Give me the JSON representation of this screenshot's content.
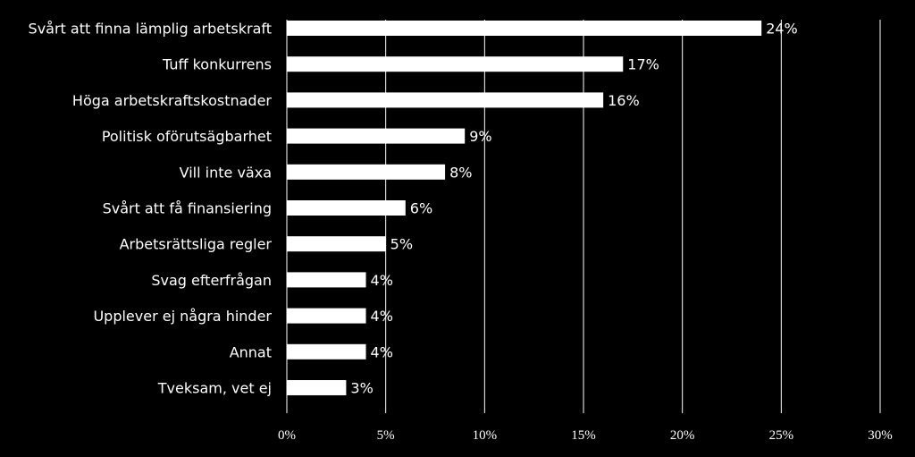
{
  "chart_data": {
    "type": "bar",
    "orientation": "horizontal",
    "categories": [
      "Svårt att finna lämplig arbetskraft",
      "Tuff konkurrens",
      "Höga arbetskraftskostnader",
      "Politisk oförutsägbarhet",
      "Vill inte växa",
      "Svårt att få finansiering",
      "Arbetsrättsliga regler",
      "Svag efterfrågan",
      "Upplever ej några hinder",
      "Annat",
      "Tveksam, vet ej"
    ],
    "values": [
      24,
      17,
      16,
      9,
      8,
      6,
      5,
      4,
      4,
      4,
      3
    ],
    "data_labels": [
      "24%",
      "17%",
      "16%",
      "9%",
      "8%",
      "6%",
      "5%",
      "4%",
      "4%",
      "4%",
      "3%"
    ],
    "xlim": [
      0,
      30
    ],
    "x_ticks": [
      0,
      5,
      10,
      15,
      20,
      25,
      30
    ],
    "x_tick_labels": [
      "0%",
      "5%",
      "10%",
      "15%",
      "20%",
      "25%",
      "30%"
    ],
    "grid": "vertical",
    "colors": {
      "background": "#000000",
      "bar": "#ffffff",
      "grid": "#ffffff",
      "text": "#ffffff"
    }
  }
}
